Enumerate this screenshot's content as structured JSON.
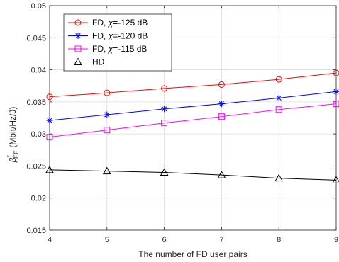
{
  "chart_data": {
    "type": "line",
    "xlabel": "The number of FD user pairs",
    "ylabel": "β*EE (Mbit/Hz/J)",
    "ylabel_parts": {
      "beta": "β",
      "sup": "*",
      "sub": "EE",
      "unit": " (Mbit/Hz/J)"
    },
    "xlim": [
      4,
      9
    ],
    "ylim": [
      0.015,
      0.05
    ],
    "x": [
      4,
      5,
      6,
      7,
      8,
      9
    ],
    "xticks": [
      "4",
      "5",
      "6",
      "7",
      "8",
      "9"
    ],
    "yticks": [
      "0.015",
      "0.02",
      "0.025",
      "0.03",
      "0.035",
      "0.04",
      "0.045",
      "0.05"
    ],
    "grid": true,
    "legend_position": "top-left",
    "series": [
      {
        "name": "FD, χ=-125 dB",
        "name_parts": {
          "pre": "FD, ",
          "sym": "χ",
          "post": "=-125 dB"
        },
        "color": "#ff0000",
        "marker": "circle",
        "values": [
          0.0358,
          0.0364,
          0.0371,
          0.0377,
          0.0385,
          0.0395
        ]
      },
      {
        "name": "FD, χ=-120 dB",
        "name_parts": {
          "pre": "FD, ",
          "sym": "χ",
          "post": "=-120 dB"
        },
        "color": "#0000ff",
        "marker": "asterisk",
        "values": [
          0.0321,
          0.033,
          0.0339,
          0.0347,
          0.0356,
          0.0366
        ]
      },
      {
        "name": "FD, χ=-115 dB",
        "name_parts": {
          "pre": "FD, ",
          "sym": "χ",
          "post": "=-115 dB"
        },
        "color": "#ff00ff",
        "marker": "square",
        "values": [
          0.0295,
          0.0306,
          0.0317,
          0.0327,
          0.0338,
          0.0347
        ]
      },
      {
        "name": "HD",
        "name_parts": {
          "pre": "HD",
          "sym": "",
          "post": ""
        },
        "color": "#000000",
        "marker": "triangle",
        "values": [
          0.0244,
          0.0242,
          0.024,
          0.0236,
          0.0231,
          0.0228
        ]
      }
    ]
  }
}
